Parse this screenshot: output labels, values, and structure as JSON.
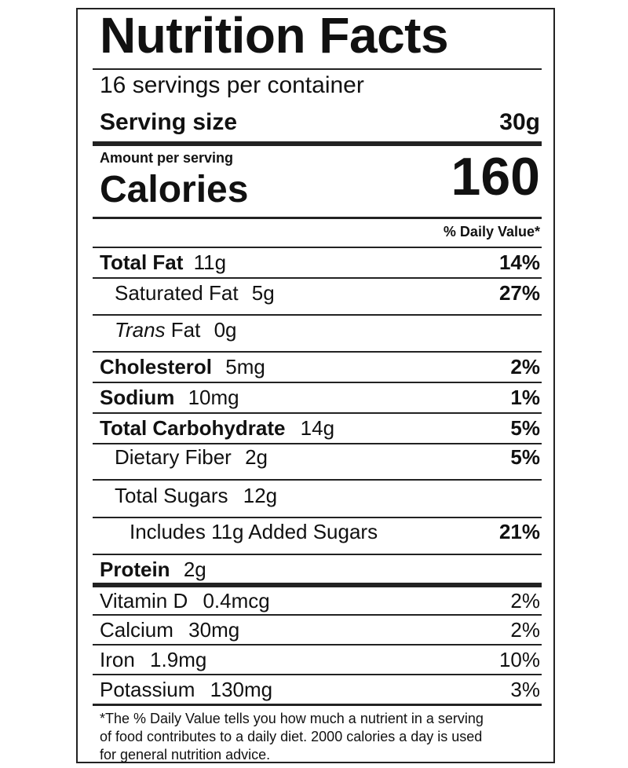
{
  "header": {
    "title": "Nutrition Facts",
    "servings": "16  servings per container",
    "serving_size_label": "Serving size",
    "serving_size_value": "30g"
  },
  "calories": {
    "amount_label": "Amount per serving",
    "label": "Calories",
    "value": "160"
  },
  "daily_value_header": "% Daily Value*",
  "nutrients": {
    "total_fat": {
      "name": "Total Fat",
      "amount": "11g",
      "dv": "14%"
    },
    "saturated_fat": {
      "name": "Saturated Fat",
      "amount": "5g",
      "dv": "27%"
    },
    "trans_fat": {
      "name_italic": "Trans",
      "name_rest": " Fat",
      "amount": "0g"
    },
    "cholesterol": {
      "name": "Cholesterol",
      "amount": "5mg",
      "dv": "2%"
    },
    "sodium": {
      "name": "Sodium",
      "amount": "10mg",
      "dv": "1%"
    },
    "total_carbohydrate": {
      "name": "Total Carbohydrate",
      "amount": "14g",
      "dv": "5%"
    },
    "dietary_fiber": {
      "name": "Dietary Fiber",
      "amount": "2g",
      "dv": "5%"
    },
    "total_sugars": {
      "name": "Total Sugars",
      "amount": "12g"
    },
    "added_sugars": {
      "text": "Includes 11g Added Sugars",
      "dv": "21%"
    },
    "protein": {
      "name": "Protein",
      "amount": "2g"
    }
  },
  "vitamins": {
    "vitamin_d": {
      "name": "Vitamin D",
      "amount": "0.4mcg",
      "dv": "2%"
    },
    "calcium": {
      "name": "Calcium",
      "amount": "30mg",
      "dv": "2%"
    },
    "iron": {
      "name": "Iron",
      "amount": "1.9mg",
      "dv": "10%"
    },
    "potassium": {
      "name": "Potassium",
      "amount": "130mg",
      "dv": "3%"
    }
  },
  "footnote": {
    "line1": "*The % Daily Value tells you how much a nutrient in a serving",
    "line2": "of food contributes to a daily diet. 2000 calories a day is used",
    "line3": "for general nutrition advice."
  }
}
